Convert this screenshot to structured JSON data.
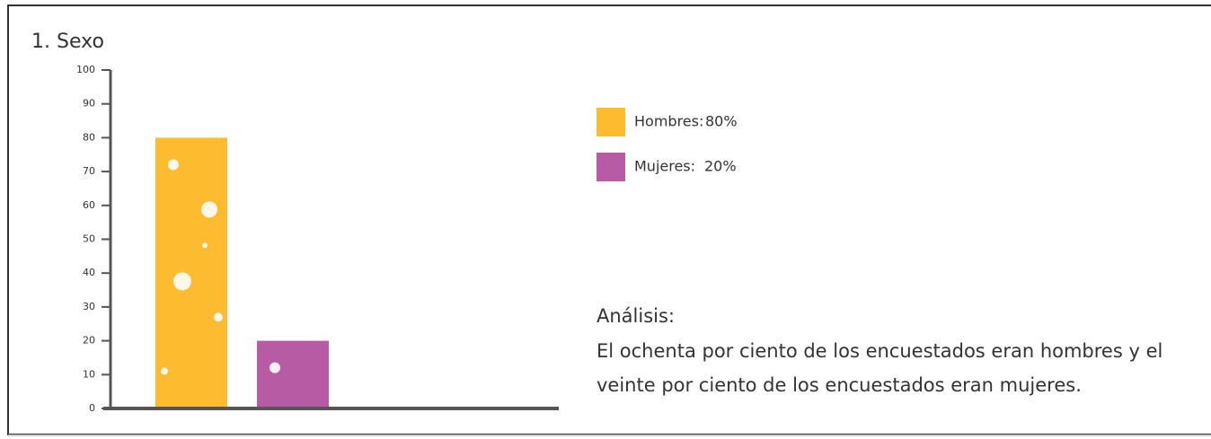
{
  "chart_data": {
    "type": "bar",
    "title": "1. Sexo",
    "categories": [
      null
    ],
    "series": [
      {
        "name": "Hombres:",
        "color": "#fdbb30",
        "values": [
          80
        ],
        "value_labels": [
          "80%"
        ]
      },
      {
        "name": "Mujeres:",
        "color": "#b85ba5",
        "values": [
          20
        ],
        "value_labels": [
          "20%"
        ]
      }
    ],
    "ylim": [
      0,
      100
    ],
    "yticks": [
      0,
      10,
      20,
      30,
      40,
      50,
      60,
      70,
      80,
      90,
      100
    ],
    "legend": "right",
    "annotations": {
      "analysis_title": "Análisis:",
      "analysis_lines": [
        "El ochenta por ciento de los encuestados eran hombres y el",
        "veinte por ciento de los encuestados eran mujeres."
      ]
    }
  }
}
